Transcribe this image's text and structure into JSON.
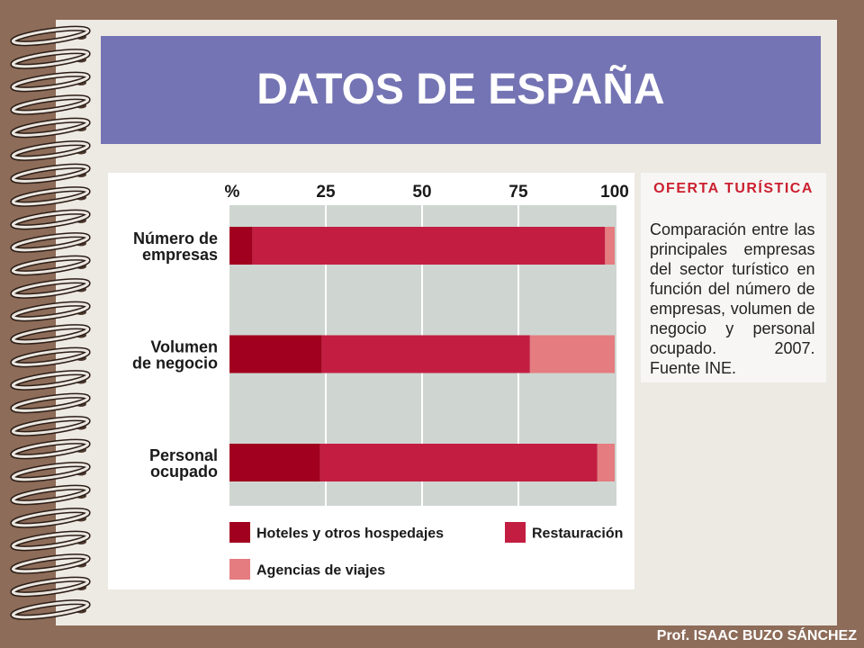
{
  "slide": {
    "title": "DATOS DE ESPAÑA",
    "footer": "Prof. ISAAC BUZO SÁNCHEZ"
  },
  "side_panel": {
    "heading": "OFERTA TURÍSTICA",
    "body": "Comparación entre las principales empresas del sector turístico en función del número de empresas, volumen de negocio y personal ocupado. 2007. Fuente INE."
  },
  "colors": {
    "background": "#8D6C59",
    "page": "#EDE9E3",
    "title_banner": "#7474B4",
    "heading": "#CC1F2F",
    "plot_background": "#CFD6D1"
  },
  "chart_data": {
    "type": "bar",
    "orientation": "horizontal",
    "stacked": true,
    "categories": [
      "Número de\nempresas",
      "Volumen\nde negocio",
      "Personal\nocupado"
    ],
    "x_ticks": [
      0,
      25,
      50,
      75,
      100
    ],
    "x_tick_labels": [
      "%",
      "25",
      "50",
      "75",
      "100"
    ],
    "xlim": [
      0,
      100
    ],
    "grid": true,
    "legend": "bottom",
    "series": [
      {
        "name": "Hoteles y otros hospedajes",
        "color": "#A1001E",
        "values": [
          6,
          24,
          23.5
        ]
      },
      {
        "name": "Restauración",
        "color": "#C31E42",
        "values": [
          91.5,
          54,
          72
        ]
      },
      {
        "name": "Agencias de viajes",
        "color": "#E57C80",
        "values": [
          2.5,
          22,
          4.5
        ]
      }
    ]
  }
}
